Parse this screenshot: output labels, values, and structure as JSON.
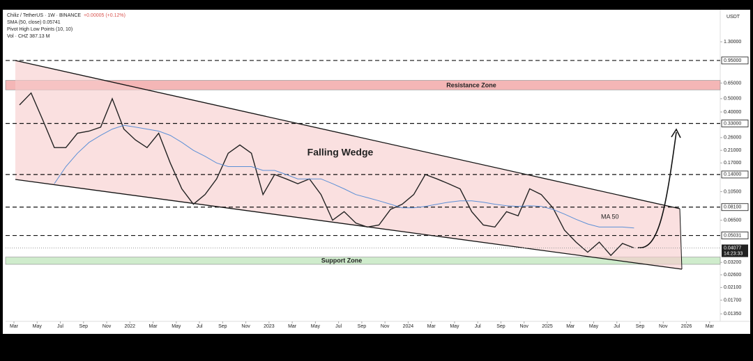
{
  "chart_data": {
    "type": "line",
    "header": [
      "Chiliz / TetherUS · 1W · BINANCE",
      "SMA (50, close)  0.05741",
      "Pivot High Low Points (10, 10)",
      "Vol · CHZ  387.13 M"
    ],
    "change": "+0.00005 (+0.12%)",
    "axis_unit": "USDT",
    "annotations": {
      "resistance": "Resistance Zone",
      "support": "Support Zone",
      "pattern": "Falling Wedge",
      "ma": "MA 50"
    },
    "zones": [
      {
        "name": "Resistance Zone",
        "range": [
          0.58,
          0.68
        ],
        "color": "#f4b6b6"
      },
      {
        "name": "Support Zone",
        "range": [
          0.031,
          0.035
        ],
        "color": "#cfeccc"
      }
    ],
    "log_scale": true,
    "ylim": [
      0.0119,
      2.2
    ],
    "yticks": [
      {
        "value": 1.3,
        "label": "1.30000"
      },
      {
        "value": 0.65,
        "label": "0.65000"
      },
      {
        "value": 0.5,
        "label": "0.50000"
      },
      {
        "value": 0.4,
        "label": "0.40000"
      },
      {
        "value": 0.26,
        "label": "0.26000"
      },
      {
        "value": 0.21,
        "label": "0.21000"
      },
      {
        "value": 0.17,
        "label": "0.17000"
      },
      {
        "value": 0.105,
        "label": "0.10500"
      },
      {
        "value": 0.065,
        "label": "0.06500"
      },
      {
        "value": 0.032,
        "label": "0.03200"
      },
      {
        "value": 0.026,
        "label": "0.02600"
      },
      {
        "value": 0.021,
        "label": "0.02100"
      },
      {
        "value": 0.017,
        "label": "0.01700"
      },
      {
        "value": 0.0135,
        "label": "0.01350"
      }
    ],
    "levels": [
      {
        "value": 0.95,
        "label": "0.95000"
      },
      {
        "value": 0.33,
        "label": "0.33000"
      },
      {
        "value": 0.14,
        "label": "0.14000"
      },
      {
        "value": 0.081,
        "label": "0.08100"
      },
      {
        "value": 0.05031,
        "label": "0.05031"
      }
    ],
    "last_price": {
      "value": 0.04077,
      "label": "0.04077",
      "countdown": "14:23:33"
    },
    "xticks": [
      {
        "value": "2021-03",
        "label": "Mar"
      },
      {
        "value": "2021-05",
        "label": "May"
      },
      {
        "value": "2021-07",
        "label": "Jul"
      },
      {
        "value": "2021-09",
        "label": "Sep"
      },
      {
        "value": "2021-11",
        "label": "Nov"
      },
      {
        "value": "2022-01",
        "label": "2022"
      },
      {
        "value": "2022-03",
        "label": "Mar"
      },
      {
        "value": "2022-05",
        "label": "May"
      },
      {
        "value": "2022-07",
        "label": "Jul"
      },
      {
        "value": "2022-09",
        "label": "Sep"
      },
      {
        "value": "2022-11",
        "label": "Nov"
      },
      {
        "value": "2023-01",
        "label": "2023"
      },
      {
        "value": "2023-03",
        "label": "Mar"
      },
      {
        "value": "2023-05",
        "label": "May"
      },
      {
        "value": "2023-07",
        "label": "Jul"
      },
      {
        "value": "2023-09",
        "label": "Sep"
      },
      {
        "value": "2023-11",
        "label": "Nov"
      },
      {
        "value": "2024-01",
        "label": "2024"
      },
      {
        "value": "2024-03",
        "label": "Mar"
      },
      {
        "value": "2024-05",
        "label": "May"
      },
      {
        "value": "2024-07",
        "label": "Jul"
      },
      {
        "value": "2024-09",
        "label": "Sep"
      },
      {
        "value": "2024-11",
        "label": "Nov"
      },
      {
        "value": "2025-01",
        "label": "2025"
      },
      {
        "value": "2025-03",
        "label": "Mar"
      },
      {
        "value": "2025-05",
        "label": "May"
      },
      {
        "value": "2025-07",
        "label": "Jul"
      },
      {
        "value": "2025-09",
        "label": "Sep"
      },
      {
        "value": "2025-11",
        "label": "Nov"
      },
      {
        "value": "2026-01",
        "label": "2026"
      },
      {
        "value": "2026-03",
        "label": "Mar"
      }
    ],
    "x": [
      "2021-03",
      "2021-04",
      "2021-05",
      "2021-06",
      "2021-07",
      "2021-08",
      "2021-09",
      "2021-10",
      "2021-11",
      "2021-12",
      "2022-01",
      "2022-02",
      "2022-03",
      "2022-04",
      "2022-05",
      "2022-06",
      "2022-07",
      "2022-08",
      "2022-09",
      "2022-10",
      "2022-11",
      "2022-12",
      "2023-01",
      "2023-02",
      "2023-03",
      "2023-04",
      "2023-05",
      "2023-06",
      "2023-07",
      "2023-08",
      "2023-09",
      "2023-10",
      "2023-11",
      "2023-12",
      "2024-01",
      "2024-02",
      "2024-03",
      "2024-04",
      "2024-05",
      "2024-06",
      "2024-07",
      "2024-08",
      "2024-09",
      "2024-10",
      "2024-11",
      "2024-12",
      "2025-01",
      "2025-02",
      "2025-03",
      "2025-04",
      "2025-05",
      "2025-06",
      "2025-07",
      "2025-08"
    ],
    "series": [
      {
        "name": "CHZ/USDT",
        "color": "#222222",
        "values": [
          0.45,
          0.55,
          0.35,
          0.22,
          0.22,
          0.28,
          0.29,
          0.31,
          0.5,
          0.3,
          0.25,
          0.22,
          0.28,
          0.17,
          0.11,
          0.085,
          0.1,
          0.13,
          0.2,
          0.23,
          0.2,
          0.1,
          0.14,
          0.13,
          0.12,
          0.13,
          0.1,
          0.065,
          0.075,
          0.062,
          0.058,
          0.06,
          0.078,
          0.085,
          0.1,
          0.14,
          0.13,
          0.12,
          0.11,
          0.075,
          0.06,
          0.058,
          0.075,
          0.07,
          0.11,
          0.1,
          0.08,
          0.055,
          0.045,
          0.038,
          0.045,
          0.036,
          0.044,
          0.04077
        ]
      },
      {
        "name": "SMA (50, close)",
        "color": "#5b8fd6",
        "values": [
          null,
          null,
          null,
          0.12,
          0.16,
          0.2,
          0.24,
          0.27,
          0.3,
          0.32,
          0.31,
          0.3,
          0.29,
          0.27,
          0.24,
          0.21,
          0.19,
          0.17,
          0.16,
          0.16,
          0.16,
          0.15,
          0.15,
          0.14,
          0.13,
          0.13,
          0.13,
          0.12,
          0.11,
          0.1,
          0.095,
          0.09,
          0.085,
          0.08,
          0.08,
          0.082,
          0.085,
          0.088,
          0.09,
          0.09,
          0.088,
          0.085,
          0.083,
          0.082,
          0.083,
          0.082,
          0.078,
          0.072,
          0.066,
          0.061,
          0.058,
          0.058,
          0.058,
          0.057
        ]
      }
    ]
  }
}
